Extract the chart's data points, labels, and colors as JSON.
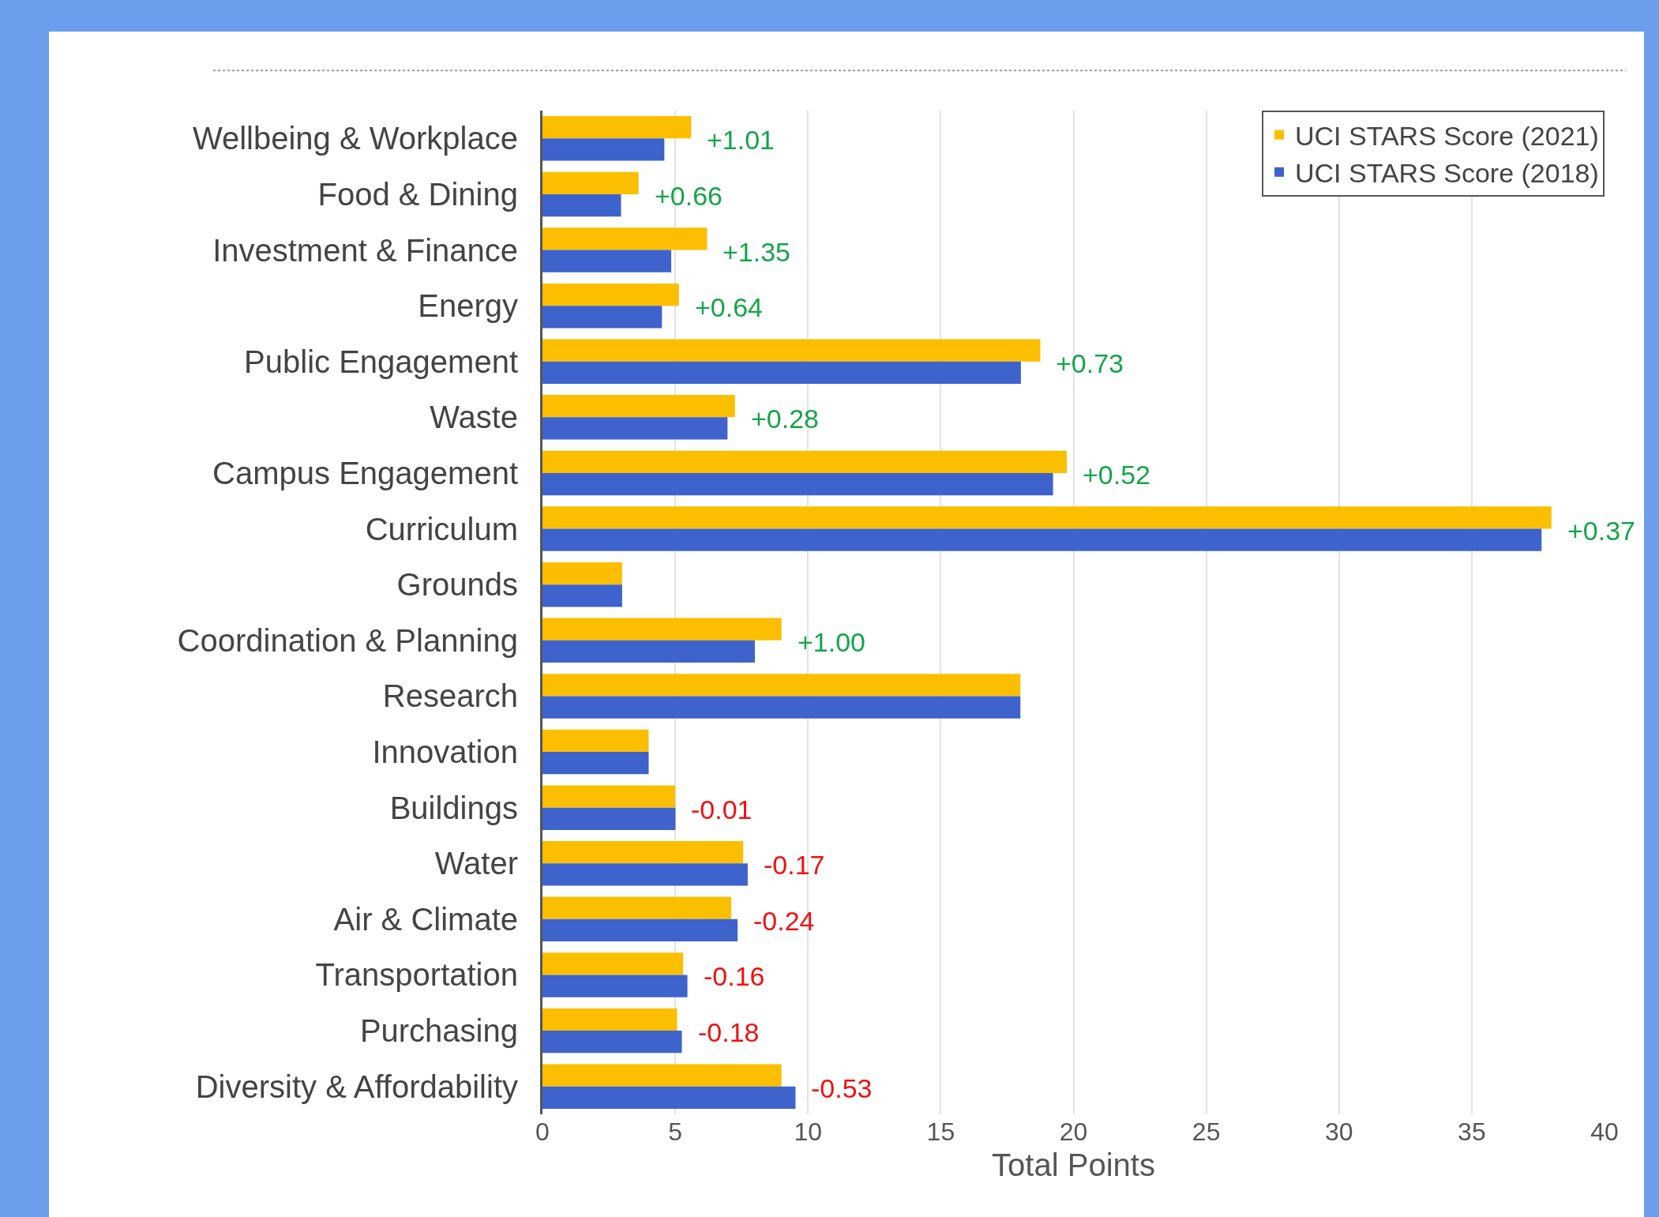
{
  "chart_data": {
    "type": "bar",
    "orientation": "horizontal",
    "xlabel": "Total Points",
    "categories": [
      "Wellbeing & Workplace",
      "Food & Dining",
      "Investment & Finance",
      "Energy",
      "Public Engagement",
      "Waste",
      "Campus Engagement",
      "Curriculum",
      "Grounds",
      "Coordination & Planning",
      "Research",
      "Innovation",
      "Buildings",
      "Water",
      "Air & Climate",
      "Transportation",
      "Purchasing",
      "Diversity & Affordability"
    ],
    "series": [
      {
        "name": "UCI STARS Score (2021)",
        "color": "#fbbf00",
        "values": [
          5.6,
          3.62,
          6.2,
          5.14,
          18.75,
          7.25,
          19.75,
          38,
          3,
          9,
          18,
          4,
          5,
          7.56,
          7.11,
          5.3,
          5.07,
          9
        ]
      },
      {
        "name": "UCI STARS Score (2018)",
        "color": "#3f63cc",
        "values": [
          4.59,
          2.96,
          4.85,
          4.5,
          18.02,
          6.97,
          19.23,
          37.63,
          3,
          8,
          18,
          4,
          5.01,
          7.73,
          7.35,
          5.46,
          5.25,
          9.53
        ]
      }
    ],
    "annotations": [
      {
        "text": "+1.01",
        "x": 5.6,
        "y": "Wellbeing & Workplace"
      },
      {
        "text": "+0.66",
        "x": 3.62,
        "y": "Food & Dining"
      },
      {
        "text": "+1.35",
        "x": 6.2,
        "y": "Investment & Finance"
      },
      {
        "text": "+0.64",
        "x": 5.14,
        "y": "Energy"
      },
      {
        "text": "+0.73",
        "x": 18.75,
        "y": "Public Engagement"
      },
      {
        "text": "+0.28",
        "x": 7.25,
        "y": "Waste"
      },
      {
        "text": "+0.52",
        "x": 19.75,
        "y": "Campus Engagement"
      },
      {
        "text": "+0.37",
        "x": 38,
        "y": "Curriculum"
      },
      {
        "text": "+1.00",
        "x": 9,
        "y": "Coordination & Planning"
      },
      {
        "text": "-0.01",
        "x": 5.01,
        "y": "Buildings"
      },
      {
        "text": "-0.17",
        "x": 7.73,
        "y": "Water"
      },
      {
        "text": "-0.24",
        "x": 7.35,
        "y": "Air & Climate"
      },
      {
        "text": "-0.16",
        "x": 5.46,
        "y": "Transportation"
      },
      {
        "text": "-0.18",
        "x": 5.25,
        "y": "Purchasing"
      },
      {
        "text": "-0.53",
        "x": 9.53,
        "y": "Diversity & Affordability"
      }
    ],
    "xlim": [
      0,
      40
    ],
    "xticks": [
      0,
      5,
      10,
      15,
      20,
      25,
      30,
      35,
      40
    ],
    "grid": "x",
    "legend": "top right"
  }
}
